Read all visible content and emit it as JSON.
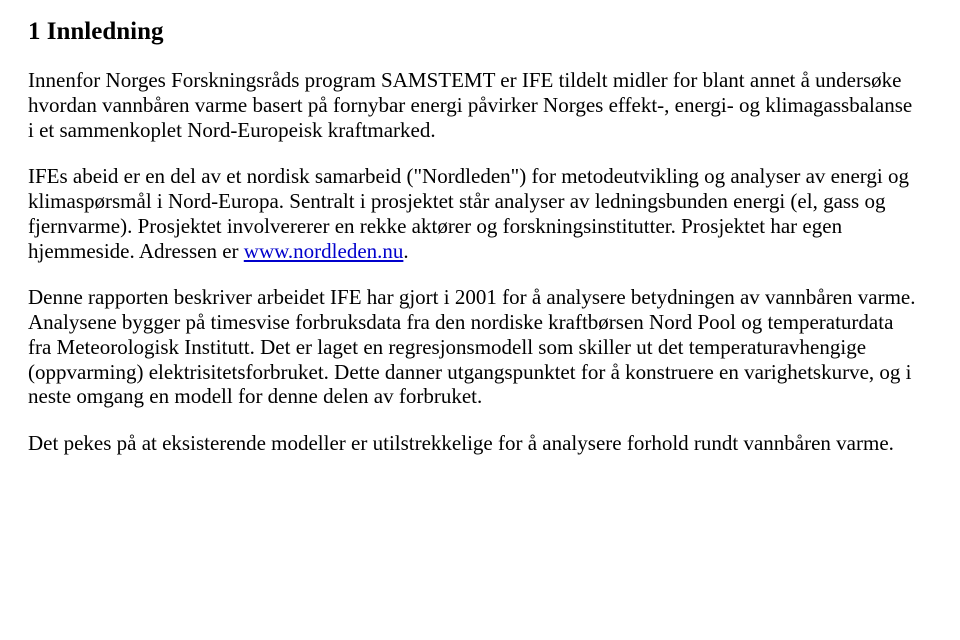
{
  "heading": "1  Innledning",
  "p1a": "Innenfor Norges Forskningsråds program SAMSTEMT er IFE tildelt midler for blant annet å undersøke hvordan vannbåren varme basert på fornybar energi påvirker Norges effekt-, energi- og klimagassbalanse i et sammenkoplet Nord-Europeisk kraftmarked.",
  "p2a": "IFEs abeid er en del av et nordisk samarbeid (\"Nordleden\") for metodeutvikling og analyser av energi og klimaspørsmål i Nord-Europa. Sentralt i prosjektet står analyser av ledningsbunden energi (el, gass og fjernvarme). Prosjektet involvererer en rekke aktører og forskningsinstitutter. Prosjektet har egen hjemmeside. Adressen er ",
  "p2link": "www.nordleden.nu",
  "p2b": ".",
  "p3": "Denne rapporten beskriver arbeidet IFE har gjort i 2001 for å analysere betydningen av vannbåren varme. Analysene bygger på  timesvise forbruksdata fra den nordiske kraftbørsen Nord Pool og temperaturdata fra Meteorologisk Institutt. Det er laget en regresjonsmodell som skiller ut det temperaturavhengige (oppvarming) elektrisitetsforbruket. Dette danner utgangspunktet for å konstruere en varighetskurve, og i neste omgang en modell for denne delen av forbruket.",
  "p4": "Det pekes på at eksisterende modeller er utilstrekkelige for å analysere forhold rundt vannbåren varme."
}
